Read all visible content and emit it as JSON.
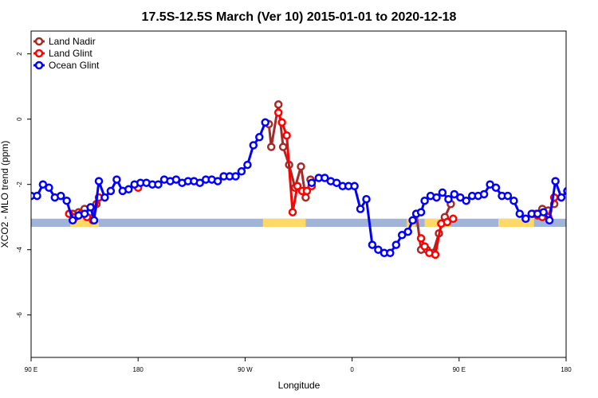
{
  "chart_data": {
    "type": "line",
    "title": "17.5S-12.5S March (Ver 10)   2015-01-01 to 2020-12-18",
    "xlabel": "Longitude",
    "ylabel": "XCO2 - MLO trend (ppm)",
    "x_ticks": [
      {
        "value": 90,
        "label": "90 E"
      },
      {
        "value": 180,
        "label": "180"
      },
      {
        "value": 270,
        "label": "90 W"
      },
      {
        "value": 360,
        "label": "0"
      },
      {
        "value": 450,
        "label": "90 E"
      },
      {
        "value": 540,
        "label": "180"
      }
    ],
    "y_ticks": [
      {
        "value": 2,
        "label": "2"
      },
      {
        "value": 0,
        "label": "0"
      },
      {
        "value": -2,
        "label": "-2"
      },
      {
        "value": -4,
        "label": "-4"
      },
      {
        "value": -6,
        "label": "-6"
      }
    ],
    "xlim": [
      90,
      540
    ],
    "ylim": [
      -7.3,
      2.7
    ],
    "legend": {
      "position": "top-left"
    },
    "colors": {
      "land_nadir": "#a52a2a",
      "land_glint": "#ff0000",
      "ocean_glint": "#0000ff",
      "land_band": "#ffd966",
      "ocean_band": "#9fb4d8"
    },
    "surface_band": {
      "y_range": [
        -3.3,
        -3.05
      ],
      "land_segments": [
        [
          123,
          147
        ],
        [
          285,
          321
        ],
        [
          406,
          413
        ],
        [
          421,
          443
        ],
        [
          483,
          513
        ]
      ]
    },
    "series": [
      {
        "name": "Land Nadir",
        "color": "#a52a2a",
        "segments": [
          [
            [
              125,
              -2.9
            ],
            [
              130,
              -2.85
            ],
            [
              135,
              -2.75
            ],
            [
              140,
              -2.85
            ],
            [
              145,
              -2.6
            ]
          ],
          [
            [
              290,
              -0.15
            ],
            [
              292,
              -0.85
            ],
            [
              298,
              0.45
            ],
            [
              302,
              -0.85
            ],
            [
              307,
              -1.4
            ],
            [
              312,
              -2.1
            ],
            [
              317,
              -1.45
            ],
            [
              321,
              -2.4
            ],
            [
              325,
              -1.85
            ]
          ],
          [
            [
              414,
              -2.9
            ],
            [
              418,
              -4.0
            ],
            [
              423,
              -4.0
            ],
            [
              428,
              -4.1
            ],
            [
              433,
              -3.5
            ],
            [
              438,
              -3.0
            ],
            [
              443,
              -2.6
            ]
          ],
          [
            [
              515,
              -2.9
            ],
            [
              520,
              -2.75
            ],
            [
              525,
              -2.8
            ],
            [
              530,
              -2.6
            ]
          ]
        ]
      },
      {
        "name": "Land Glint",
        "color": "#ff0000",
        "segments": [
          [
            [
              122,
              -2.9
            ],
            [
              127,
              -3.0
            ],
            [
              132,
              -2.9
            ],
            [
              137,
              -3.0
            ],
            [
              142,
              -3.1
            ],
            [
              147,
              -2.4
            ]
          ],
          [
            [
              298,
              0.2
            ],
            [
              301,
              -0.1
            ],
            [
              305,
              -0.5
            ],
            [
              310,
              -2.85
            ],
            [
              314,
              -2.05
            ],
            [
              318,
              -2.2
            ],
            [
              322,
              -2.2
            ],
            [
              326,
              -2.05
            ]
          ],
          [
            [
              418,
              -3.65
            ],
            [
              421,
              -3.9
            ],
            [
              425,
              -4.1
            ],
            [
              430,
              -4.15
            ],
            [
              435,
              -3.2
            ],
            [
              440,
              -3.15
            ],
            [
              445,
              -3.05
            ]
          ],
          [
            [
              512,
              -2.9
            ],
            [
              516,
              -2.95
            ],
            [
              520,
              -3.0
            ],
            [
              525,
              -3.0
            ],
            [
              530,
              -2.4
            ]
          ],
          [
            [
              180,
              -2.1
            ]
          ]
        ]
      },
      {
        "name": "Ocean Glint",
        "color": "#0000ff",
        "segments": [
          [
            [
              90,
              -2.35
            ],
            [
              95,
              -2.35
            ],
            [
              100,
              -2.0
            ],
            [
              105,
              -2.1
            ],
            [
              110,
              -2.4
            ],
            [
              115,
              -2.35
            ],
            [
              120,
              -2.5
            ],
            [
              125,
              -3.1
            ],
            [
              130,
              -2.95
            ],
            [
              135,
              -2.9
            ],
            [
              140,
              -2.7
            ],
            [
              143,
              -3.1
            ],
            [
              147,
              -1.9
            ],
            [
              152,
              -2.4
            ],
            [
              157,
              -2.2
            ],
            [
              162,
              -1.85
            ],
            [
              167,
              -2.2
            ],
            [
              172,
              -2.15
            ],
            [
              177,
              -2.0
            ],
            [
              182,
              -1.95
            ],
            [
              187,
              -1.95
            ],
            [
              192,
              -2.0
            ],
            [
              197,
              -2.0
            ],
            [
              202,
              -1.85
            ],
            [
              207,
              -1.9
            ],
            [
              212,
              -1.85
            ],
            [
              217,
              -1.95
            ],
            [
              222,
              -1.9
            ],
            [
              227,
              -1.9
            ],
            [
              232,
              -1.95
            ],
            [
              237,
              -1.85
            ],
            [
              242,
              -1.85
            ],
            [
              247,
              -1.9
            ],
            [
              252,
              -1.75
            ],
            [
              257,
              -1.75
            ],
            [
              262,
              -1.75
            ],
            [
              267,
              -1.6
            ],
            [
              272,
              -1.4
            ],
            [
              277,
              -0.8
            ],
            [
              282,
              -0.55
            ],
            [
              287,
              -0.1
            ]
          ],
          [
            [
              326,
              -1.95
            ],
            [
              332,
              -1.8
            ],
            [
              337,
              -1.8
            ],
            [
              342,
              -1.9
            ],
            [
              347,
              -1.95
            ],
            [
              352,
              -2.05
            ],
            [
              357,
              -2.05
            ],
            [
              362,
              -2.05
            ],
            [
              367,
              -2.75
            ],
            [
              372,
              -2.45
            ],
            [
              377,
              -3.85
            ],
            [
              382,
              -4.0
            ],
            [
              387,
              -4.1
            ],
            [
              392,
              -4.1
            ],
            [
              397,
              -3.85
            ],
            [
              402,
              -3.55
            ],
            [
              407,
              -3.45
            ],
            [
              411,
              -3.1
            ],
            [
              414,
              -2.9
            ],
            [
              418,
              -2.85
            ],
            [
              421,
              -2.5
            ],
            [
              426,
              -2.35
            ],
            [
              431,
              -2.4
            ],
            [
              436,
              -2.25
            ],
            [
              441,
              -2.45
            ],
            [
              446,
              -2.3
            ],
            [
              451,
              -2.4
            ],
            [
              456,
              -2.5
            ],
            [
              461,
              -2.35
            ],
            [
              466,
              -2.35
            ],
            [
              471,
              -2.3
            ],
            [
              476,
              -2.0
            ],
            [
              481,
              -2.1
            ],
            [
              486,
              -2.35
            ],
            [
              491,
              -2.35
            ],
            [
              496,
              -2.5
            ],
            [
              501,
              -2.9
            ],
            [
              506,
              -3.05
            ],
            [
              511,
              -2.9
            ],
            [
              516,
              -2.9
            ],
            [
              521,
              -2.85
            ],
            [
              526,
              -3.1
            ],
            [
              531,
              -1.9
            ],
            [
              536,
              -2.4
            ],
            [
              541,
              -2.2
            ],
            [
              546,
              -1.85
            ],
            [
              551,
              -2.2
            ],
            [
              556,
              -2.15
            ],
            [
              561,
              -2.0
            ]
          ]
        ]
      }
    ]
  }
}
